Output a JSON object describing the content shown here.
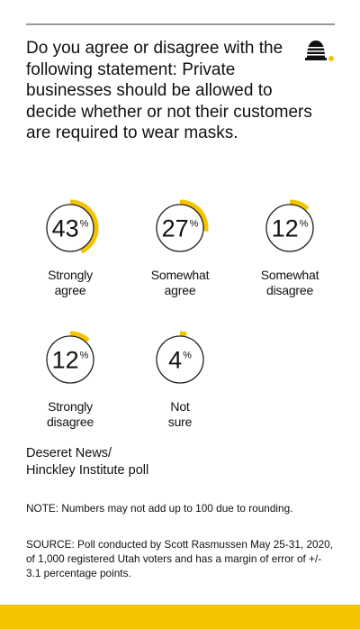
{
  "question": "Do you agree or disagree with the following statement: Private businesses should be allowed to decide whether or not their customers are required to wear masks.",
  "colors": {
    "accent": "#f5c400",
    "ring": "#222222",
    "rule": "#9a9a9a",
    "text": "#111111"
  },
  "logo": {
    "icon": "beehive-icon"
  },
  "chart_data": {
    "type": "gauge",
    "unit": "%",
    "max": 100,
    "items": [
      {
        "label": "Strongly agree",
        "value": 43
      },
      {
        "label": "Somewhat agree",
        "value": 27
      },
      {
        "label": "Somewhat disagree",
        "value": 12
      },
      {
        "label": "Strongly disagree",
        "value": 12
      },
      {
        "label": "Not sure",
        "value": 4
      }
    ]
  },
  "source_name": "Deseret News/ Hinckley Institute poll",
  "note": "NOTE: Numbers may not add up to 100 due to rounding.",
  "source": "SOURCE: Poll conducted by Scott Rasmussen May 25-31, 2020, of 1,000 registered Utah voters and has a margin of error of +/- 3.1 percentage points."
}
